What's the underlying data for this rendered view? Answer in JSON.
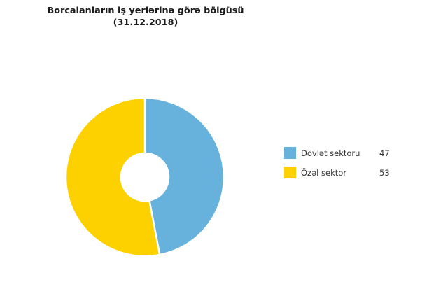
{
  "title": {
    "line1": "Borcalanların iş yerlərinə görə bölgüsü",
    "line2": "(31.12.2018)"
  },
  "chart_data": {
    "type": "pie",
    "donut": true,
    "title": "Borcalanların iş yerlərinə görə bölgüsü (31.12.2018)",
    "series": [
      {
        "name": "Dövlət sektoru",
        "value": 47,
        "color": "#66b2dc"
      },
      {
        "name": "Özəl sektor",
        "value": 53,
        "color": "#fdd100"
      }
    ],
    "total": 100,
    "start_angle_deg": 0,
    "direction": "clockwise",
    "legend_position": "right",
    "slice_gap_color": "#ffffff"
  }
}
